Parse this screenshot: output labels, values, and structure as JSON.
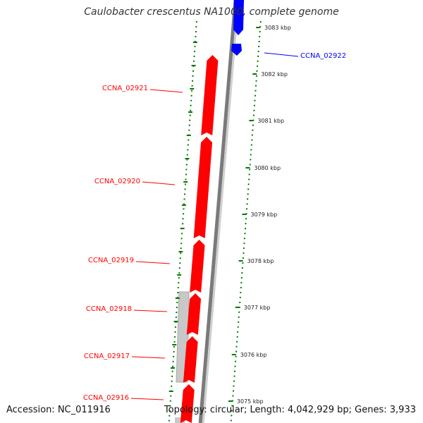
{
  "title": "Caulobacter crescentus NA1000, complete genome",
  "footer": {
    "accession": "Accession: NC_011916",
    "summary": "Topology: circular; Length: 4,042,929 bp; Genes: 3,933"
  },
  "colors": {
    "forward_gene": "#ff0000",
    "reverse_gene": "#0000ff",
    "other_feature": "#c8c8c8",
    "backbone": "#999999",
    "ticks": "#007a00"
  },
  "tick_labels": [
    "3083 kbp",
    "3082 kbp",
    "3081 kbp",
    "3080 kbp",
    "3079 kbp",
    "3078 kbp",
    "3077 kbp",
    "3076 kbp",
    "3075 kbp"
  ],
  "genes": [
    {
      "label": "CCNA_02922",
      "strand": "reverse"
    },
    {
      "label": "CCNA_02921",
      "strand": "forward"
    },
    {
      "label": "CCNA_02920",
      "strand": "forward"
    },
    {
      "label": "CCNA_02919",
      "strand": "forward"
    },
    {
      "label": "CCNA_02918",
      "strand": "forward"
    },
    {
      "label": "CCNA_02917",
      "strand": "forward"
    },
    {
      "label": "CCNA_02916",
      "strand": "forward"
    }
  ]
}
